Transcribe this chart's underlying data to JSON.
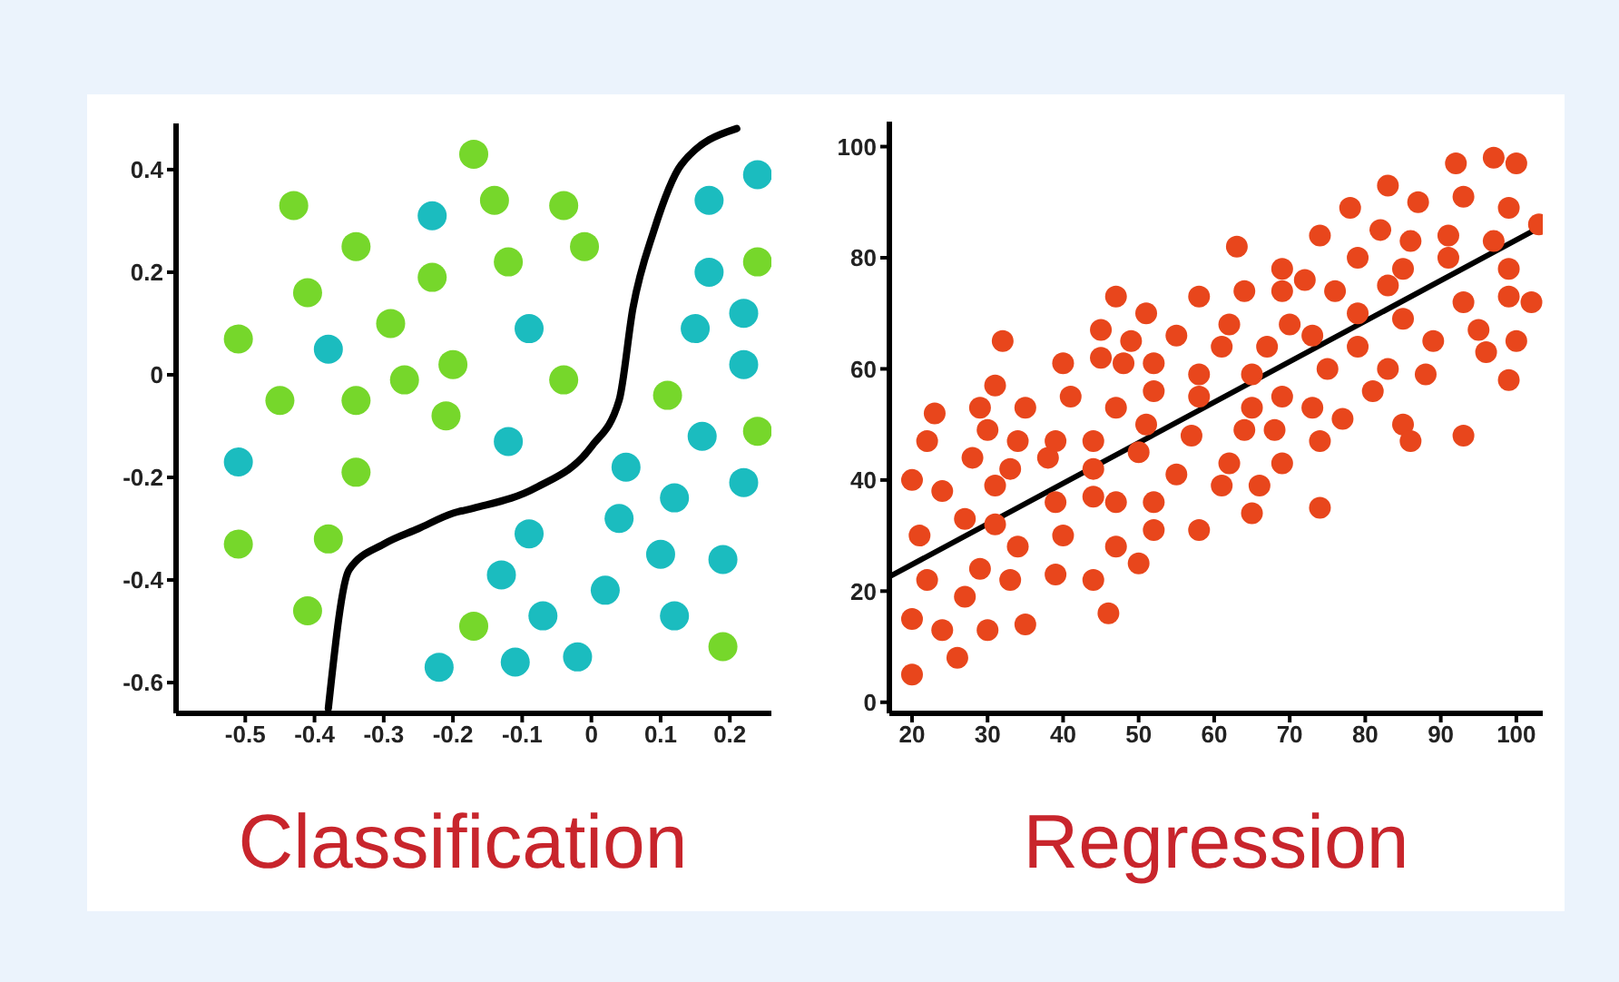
{
  "chart_data": [
    {
      "type": "scatter",
      "title": "Classification",
      "marker": "circle",
      "xlim": [
        -0.6,
        0.26
      ],
      "xticks": [
        -0.5,
        -0.4,
        -0.3,
        -0.2,
        -0.1,
        0,
        0.1,
        0.2
      ],
      "ylim": [
        -0.66,
        0.49
      ],
      "yticks": [
        -0.6,
        -0.4,
        -0.2,
        0,
        0.2,
        0.4
      ],
      "series": [
        {
          "color": "#76d72b",
          "x": [
            -0.43,
            -0.34,
            -0.23,
            -0.41,
            -0.51,
            -0.29,
            -0.2,
            -0.27,
            -0.45,
            -0.34,
            -0.21,
            -0.34,
            -0.51,
            -0.38,
            -0.41,
            -0.17,
            -0.14,
            -0.04,
            -0.01,
            -0.12,
            -0.04,
            0.11,
            0.24,
            0.24,
            -0.17,
            0.19
          ],
          "values": [
            0.33,
            0.25,
            0.19,
            0.16,
            0.07,
            0.1,
            0.02,
            -0.01,
            -0.05,
            -0.05,
            -0.08,
            -0.19,
            -0.33,
            -0.32,
            -0.46,
            0.43,
            0.34,
            0.33,
            0.25,
            0.22,
            -0.01,
            -0.04,
            0.22,
            -0.11,
            -0.49,
            -0.53
          ]
        },
        {
          "color": "#1bbcbf",
          "x": [
            -0.23,
            -0.38,
            -0.51,
            -0.22,
            0.24,
            0.17,
            0.17,
            0.22,
            0.15,
            -0.09,
            0.22,
            -0.12,
            0.16,
            0.05,
            0.22,
            0.12,
            0.04,
            -0.09,
            0.1,
            0.19,
            -0.13,
            0.02,
            -0.07,
            0.12,
            -0.11,
            -0.02
          ],
          "values": [
            0.31,
            0.05,
            -0.17,
            -0.57,
            0.39,
            0.34,
            0.2,
            0.12,
            0.09,
            0.09,
            0.02,
            -0.13,
            -0.12,
            -0.18,
            -0.21,
            -0.24,
            -0.28,
            -0.31,
            -0.35,
            -0.36,
            -0.39,
            -0.42,
            -0.47,
            -0.47,
            -0.56,
            -0.55
          ]
        },
        {
          "type": "line",
          "marker": "none",
          "color": "#000000",
          "x": [
            -0.38,
            -0.35,
            -0.3,
            -0.25,
            -0.2,
            -0.17,
            -0.08,
            0,
            0.04,
            0.06,
            0.09,
            0.13,
            0.21
          ],
          "values": [
            -0.65,
            -0.38,
            -0.33,
            -0.3,
            -0.27,
            -0.26,
            -0.22,
            -0.14,
            -0.05,
            0.13,
            0.28,
            0.41,
            0.48
          ]
        }
      ]
    },
    {
      "type": "scatter",
      "title": "Regression",
      "marker": "circle",
      "xlim": [
        17,
        103.5
      ],
      "xticks": [
        20,
        30,
        40,
        50,
        60,
        70,
        80,
        90,
        100
      ],
      "ylim": [
        -2,
        104.5
      ],
      "yticks": [
        0,
        20,
        40,
        60,
        80,
        100
      ],
      "series": [
        {
          "color": "#e8461c",
          "x": [
            20,
            22,
            23,
            21,
            22,
            20,
            20,
            24,
            24,
            27,
            28,
            27,
            26,
            29,
            29,
            30,
            30,
            31,
            31,
            31,
            32,
            33,
            34,
            33,
            34,
            35,
            35,
            38,
            39,
            39,
            39,
            40,
            40,
            41,
            44,
            44,
            44,
            45,
            45,
            44,
            46,
            47,
            47,
            47,
            47,
            48,
            49,
            51,
            52,
            52,
            51,
            50,
            52,
            52,
            50,
            55,
            55,
            58,
            58,
            58,
            57,
            58,
            63,
            62,
            61,
            64,
            65,
            65,
            64,
            62,
            61,
            65,
            66,
            67,
            69,
            69,
            70,
            69,
            68,
            69,
            72,
            74,
            73,
            75,
            73,
            74,
            74,
            76,
            77,
            78,
            79,
            79,
            79,
            81,
            82,
            83,
            83,
            83,
            85,
            85,
            85,
            86,
            87,
            86,
            89,
            88,
            91,
            91,
            92,
            93,
            93,
            95,
            96,
            93,
            97,
            97,
            99,
            99,
            99,
            99,
            100,
            100,
            102,
            103
          ],
          "values": [
            40,
            47,
            52,
            30,
            22,
            15,
            5,
            13,
            38,
            33,
            44,
            19,
            8,
            53,
            24,
            49,
            13,
            39,
            32,
            57,
            65,
            42,
            47,
            22,
            28,
            53,
            14,
            44,
            47,
            36,
            23,
            61,
            30,
            55,
            47,
            42,
            37,
            62,
            67,
            22,
            16,
            73,
            53,
            36,
            28,
            61,
            65,
            70,
            61,
            56,
            50,
            45,
            36,
            31,
            25,
            66,
            41,
            73,
            59,
            55,
            48,
            31,
            82,
            68,
            64,
            74,
            59,
            53,
            49,
            43,
            39,
            34,
            39,
            64,
            74,
            78,
            68,
            55,
            49,
            43,
            76,
            84,
            66,
            60,
            53,
            47,
            35,
            74,
            51,
            89,
            80,
            70,
            64,
            56,
            85,
            93,
            75,
            60,
            78,
            69,
            50,
            47,
            90,
            83,
            65,
            59,
            80,
            84,
            97,
            91,
            72,
            67,
            63,
            48,
            98,
            83,
            78,
            73,
            58,
            89,
            97,
            65,
            72,
            86
          ]
        },
        {
          "type": "line",
          "marker": "none",
          "color": "#000000",
          "x": [
            17,
            103
          ],
          "values": [
            22.6,
            85.4
          ]
        }
      ]
    }
  ]
}
